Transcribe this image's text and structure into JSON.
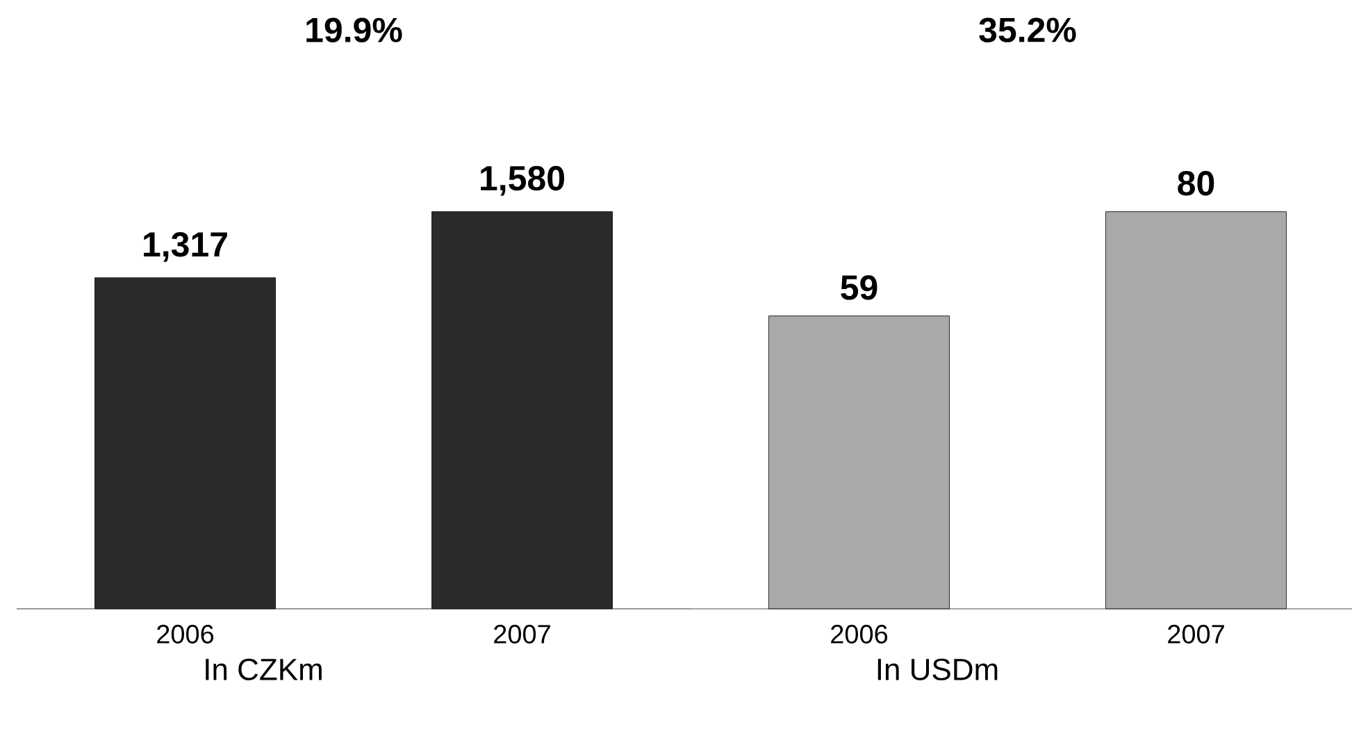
{
  "chart_data": [
    {
      "type": "bar",
      "categories": [
        "2006",
        "2007"
      ],
      "values": [
        1317,
        1580
      ],
      "value_labels": [
        "1,317",
        "1,580"
      ],
      "color": "#2b2b2b",
      "xlabel": "In CZKm",
      "annotations": [
        "19.9%"
      ]
    },
    {
      "type": "bar",
      "categories": [
        "2006",
        "2007"
      ],
      "values": [
        59,
        80
      ],
      "value_labels": [
        "59",
        "80"
      ],
      "color": "#a9a9a9",
      "xlabel": "In USDm",
      "annotations": [
        "35.2%"
      ]
    }
  ]
}
